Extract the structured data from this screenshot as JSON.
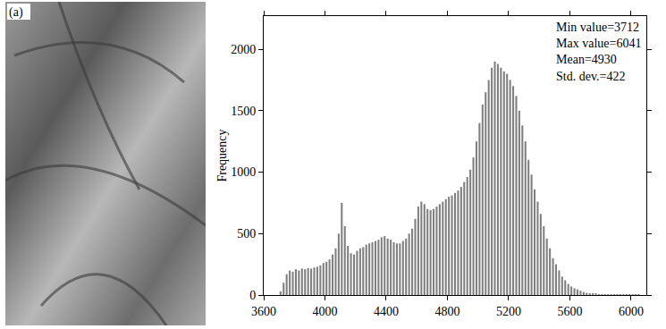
{
  "image_panel": {
    "label": "(a)"
  },
  "chart_data": {
    "type": "histogram",
    "ylabel": "Frequency",
    "color": "#7f7f7f",
    "grid": false,
    "annotations": [
      "Min value=3712",
      "Max value=6041",
      "Mean=4930",
      "Std. dev.=422"
    ],
    "bins": [
      3700,
      3720,
      3740,
      3760,
      3780,
      3800,
      3820,
      3840,
      3860,
      3880,
      3900,
      3920,
      3940,
      3960,
      3980,
      4000,
      4020,
      4040,
      4060,
      4080,
      4100,
      4120,
      4140,
      4160,
      4180,
      4200,
      4220,
      4240,
      4260,
      4280,
      4300,
      4320,
      4340,
      4360,
      4380,
      4400,
      4420,
      4440,
      4460,
      4480,
      4500,
      4520,
      4540,
      4560,
      4580,
      4600,
      4620,
      4640,
      4660,
      4680,
      4700,
      4720,
      4740,
      4760,
      4780,
      4800,
      4820,
      4840,
      4860,
      4880,
      4900,
      4920,
      4940,
      4960,
      4980,
      5000,
      5020,
      5040,
      5060,
      5080,
      5100,
      5120,
      5140,
      5160,
      5180,
      5200,
      5220,
      5240,
      5260,
      5280,
      5300,
      5320,
      5340,
      5360,
      5380,
      5400,
      5420,
      5440,
      5460,
      5480,
      5500,
      5520,
      5540,
      5560,
      5580,
      5600,
      5620,
      5640,
      5660,
      5680,
      5700,
      5720,
      5740,
      5760,
      5780,
      5800,
      5820,
      5840,
      5860,
      5880,
      5900,
      5920,
      5940,
      5960,
      5980,
      6000,
      6020,
      6040,
      6060
    ],
    "values": [
      30,
      100,
      170,
      200,
      190,
      210,
      200,
      215,
      210,
      220,
      215,
      225,
      230,
      240,
      260,
      270,
      290,
      330,
      380,
      500,
      750,
      560,
      400,
      340,
      330,
      360,
      380,
      390,
      410,
      420,
      430,
      440,
      450,
      470,
      480,
      460,
      450,
      430,
      420,
      420,
      440,
      460,
      500,
      540,
      620,
      720,
      760,
      740,
      700,
      690,
      700,
      720,
      740,
      760,
      780,
      800,
      810,
      830,
      850,
      880,
      920,
      960,
      1020,
      1120,
      1250,
      1400,
      1550,
      1650,
      1750,
      1850,
      1900,
      1880,
      1850,
      1820,
      1800,
      1750,
      1700,
      1620,
      1500,
      1380,
      1250,
      1100,
      980,
      860,
      760,
      660,
      560,
      460,
      380,
      300,
      250,
      200,
      150,
      120,
      90,
      70,
      55,
      45,
      35,
      25,
      18,
      12,
      10,
      8,
      6,
      5,
      4,
      3,
      2,
      2,
      1,
      1,
      1,
      1,
      1,
      1,
      1,
      1
    ],
    "xlim": [
      3600,
      6100
    ],
    "xticks": [
      3600,
      4000,
      4400,
      4800,
      5200,
      5600,
      6000
    ],
    "ylim": [
      0,
      2270
    ],
    "yticks": [
      0,
      500,
      1000,
      1500,
      2000
    ]
  }
}
